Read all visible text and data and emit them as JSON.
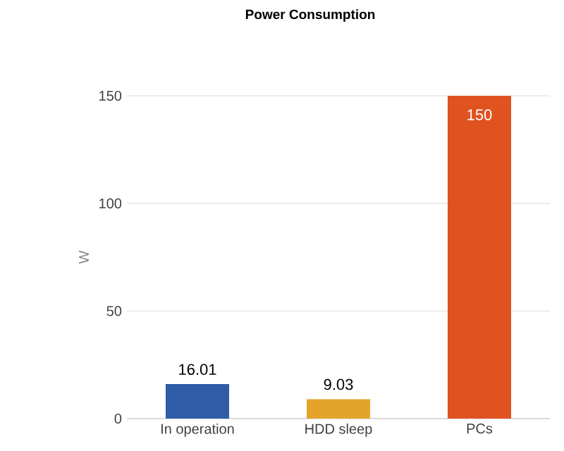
{
  "chart_data": {
    "type": "bar",
    "title": "Power Consumption",
    "ylabel": "W",
    "categories": [
      "In operation",
      "HDD sleep",
      "PCs"
    ],
    "values": [
      16.01,
      9.03,
      150
    ],
    "colors": [
      "#2e5ca6",
      "#e4a42b",
      "#e0521f"
    ],
    "ylim": [
      0,
      150
    ],
    "yticks": [
      0,
      50,
      100,
      150
    ],
    "grid": "y",
    "data_labels": true
  }
}
